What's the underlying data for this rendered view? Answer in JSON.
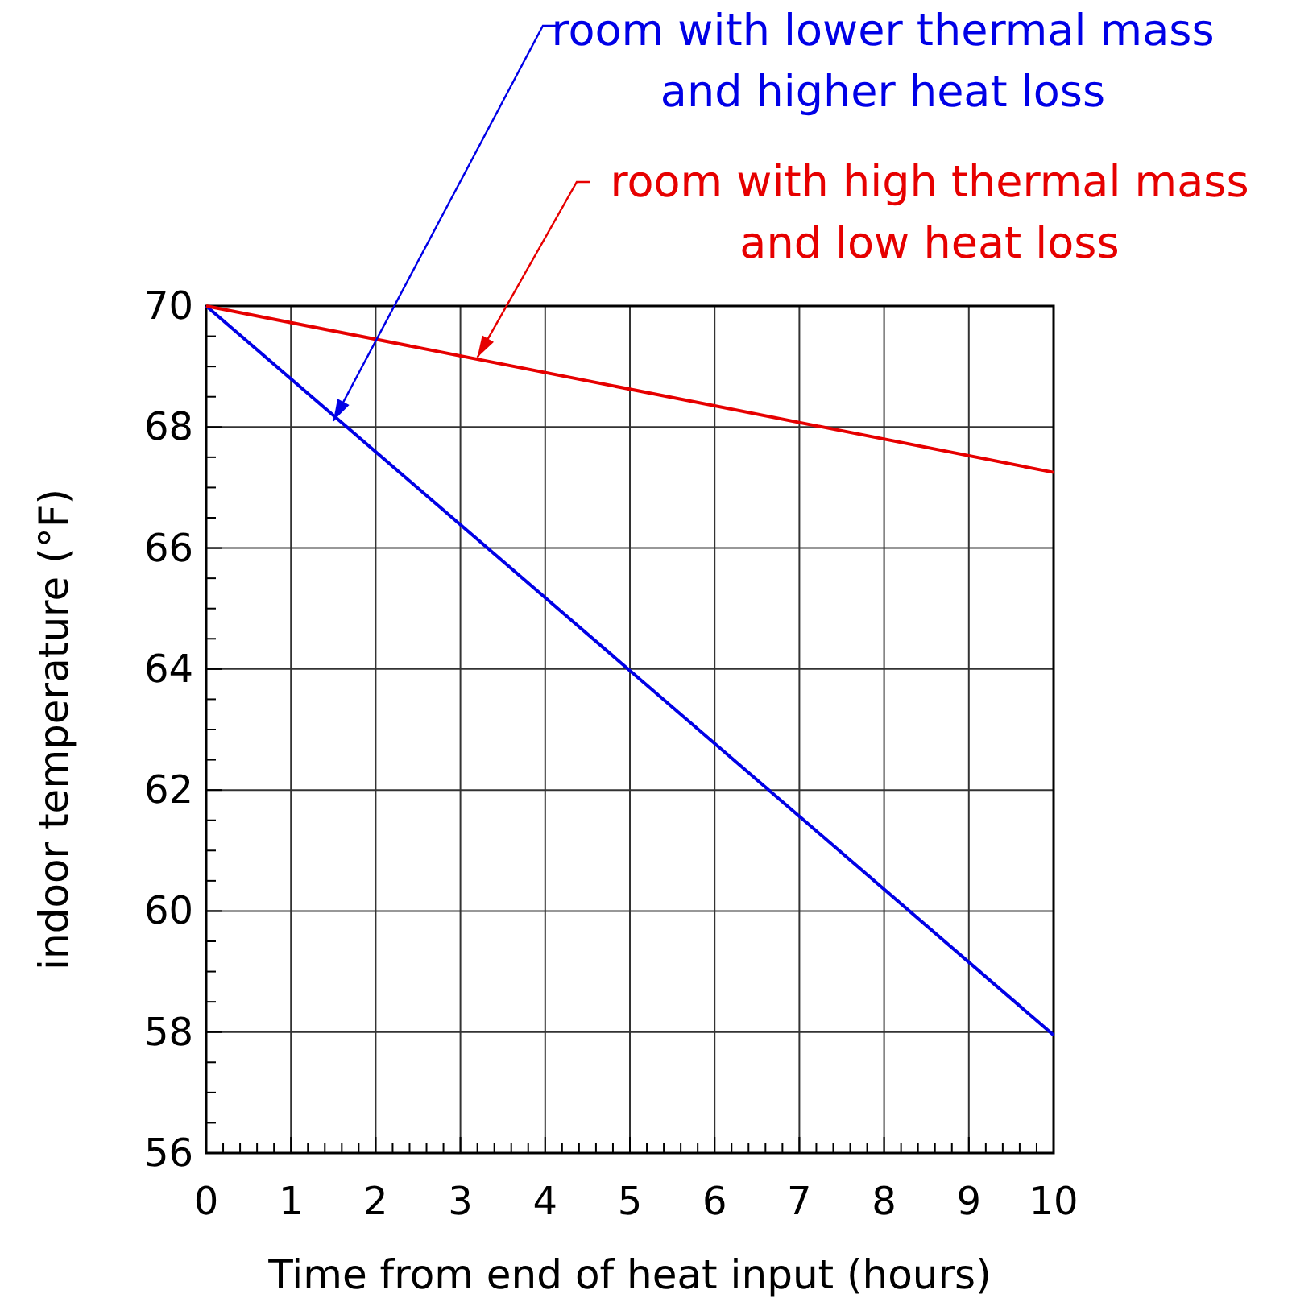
{
  "chart_data": {
    "type": "line",
    "xlabel": "Time from end of heat input (hours)",
    "ylabel": "indoor temperature (°F)",
    "x": [
      0,
      10
    ],
    "series": [
      {
        "color": "#0000e6",
        "values": [
          70,
          57.95
        ]
      },
      {
        "color": "#e60000",
        "values": [
          70,
          67.25
        ]
      }
    ],
    "xlim": [
      0,
      10
    ],
    "ylim": [
      56,
      70
    ],
    "xticks": [
      0,
      {
        "value": 0.2,
        "label": null
      },
      {
        "value": 0.4,
        "label": null
      },
      {
        "value": 0.6,
        "label": null
      },
      {
        "value": 0.8,
        "label": null
      },
      1,
      {
        "value": 1.2,
        "label": null
      },
      {
        "value": 1.4,
        "label": null
      },
      {
        "value": 1.6,
        "label": null
      },
      {
        "value": 1.8,
        "label": null
      },
      2,
      {
        "value": 2.2,
        "label": null
      },
      {
        "value": 2.4,
        "label": null
      },
      {
        "value": 2.6,
        "label": null
      },
      {
        "value": 2.8,
        "label": null
      },
      3,
      {
        "value": 3.2,
        "label": null
      },
      {
        "value": 3.4,
        "label": null
      },
      {
        "value": 3.6,
        "label": null
      },
      {
        "value": 3.8,
        "label": null
      },
      4,
      {
        "value": 4.2,
        "label": null
      },
      {
        "value": 4.4,
        "label": null
      },
      {
        "value": 4.6,
        "label": null
      },
      {
        "value": 4.8,
        "label": null
      },
      5,
      {
        "value": 5.2,
        "label": null
      },
      {
        "value": 5.4,
        "label": null
      },
      {
        "value": 5.6,
        "label": null
      },
      {
        "value": 5.8,
        "label": null
      },
      6,
      {
        "value": 6.2,
        "label": null
      },
      {
        "value": 6.4,
        "label": null
      },
      {
        "value": 6.6,
        "label": null
      },
      {
        "value": 6.8,
        "label": null
      },
      7,
      {
        "value": 7.2,
        "label": null
      },
      {
        "value": 7.4,
        "label": null
      },
      {
        "value": 7.6,
        "label": null
      },
      {
        "value": 7.8,
        "label": null
      },
      8,
      {
        "value": 8.2,
        "label": null
      },
      {
        "value": 8.4,
        "label": null
      },
      {
        "value": 8.6,
        "label": null
      },
      {
        "value": 8.8,
        "label": null
      },
      9,
      {
        "value": 9.2,
        "label": null
      },
      {
        "value": 9.4,
        "label": null
      },
      {
        "value": 9.6,
        "label": null
      },
      {
        "value": 9.8,
        "label": null
      },
      10
    ],
    "yticks": [
      56,
      {
        "value": 56.5,
        "label": null
      },
      {
        "value": 57,
        "label": null
      },
      {
        "value": 57.5,
        "label": null
      },
      58,
      {
        "value": 58.5,
        "label": null
      },
      {
        "value": 59,
        "label": null
      },
      {
        "value": 59.5,
        "label": null
      },
      60,
      {
        "value": 60.5,
        "label": null
      },
      {
        "value": 61,
        "label": null
      },
      {
        "value": 61.5,
        "label": null
      },
      62,
      {
        "value": 62.5,
        "label": null
      },
      {
        "value": 63,
        "label": null
      },
      {
        "value": 63.5,
        "label": null
      },
      64,
      {
        "value": 64.5,
        "label": null
      },
      {
        "value": 65,
        "label": null
      },
      {
        "value": 65.5,
        "label": null
      },
      66,
      {
        "value": 66.5,
        "label": null
      },
      {
        "value": 67,
        "label": null
      },
      {
        "value": 67.5,
        "label": null
      },
      68,
      {
        "value": 68.5,
        "label": null
      },
      {
        "value": 69,
        "label": null
      },
      {
        "value": 69.5,
        "label": null
      },
      70
    ],
    "grid": true,
    "marker": "none",
    "line_style": "solid",
    "annotations": [
      {
        "text": "room with lower thermal mass\nand higher heat loss",
        "x": 1.5,
        "y": 68.1
      },
      {
        "text": "room with high thermal mass\nand low heat loss",
        "x": 3.2,
        "y": 69.15
      }
    ]
  }
}
